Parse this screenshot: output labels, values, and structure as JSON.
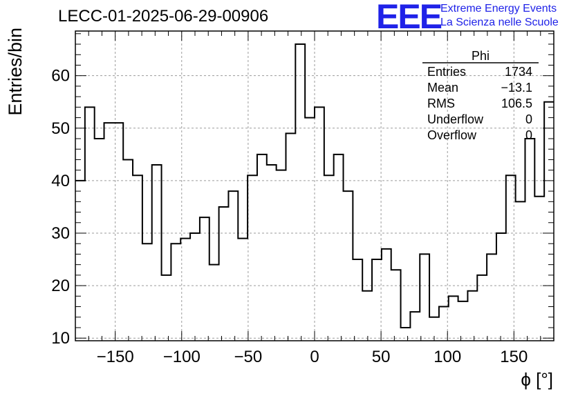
{
  "header": {
    "run_title": "LECC-01-2025-06-29-00906",
    "logo_letters": "EEE",
    "logo_line1": "Extreme Energy Events",
    "logo_line2": "La Scienza nelle Scuole"
  },
  "colors": {
    "logo": "#1f22e8",
    "line": "#000000",
    "grid": "#9a9a9a"
  },
  "chart_data": {
    "type": "histogram",
    "title": "",
    "xlabel": "ϕ [°]",
    "ylabel": "Entries/bin",
    "xlim": [
      -180,
      180
    ],
    "ylim": [
      9.5,
      68.5
    ],
    "grid": true,
    "bin_width": 7.2,
    "bin_low_edges": [
      -180.0,
      -172.8,
      -165.6,
      -158.4,
      -151.2,
      -144.0,
      -136.8,
      -129.6,
      -122.4,
      -115.2,
      -108.0,
      -100.8,
      -93.6,
      -86.4,
      -79.2,
      -72.0,
      -64.8,
      -57.6,
      -50.4,
      -43.2,
      -36.0,
      -28.8,
      -21.6,
      -14.4,
      -7.2,
      0.0,
      7.2,
      14.4,
      21.6,
      28.8,
      36.0,
      43.2,
      50.4,
      57.6,
      64.8,
      72.0,
      79.2,
      86.4,
      93.6,
      100.8,
      108.0,
      115.2,
      122.4,
      129.6,
      136.8,
      144.0,
      151.2,
      158.4,
      165.6,
      172.8
    ],
    "values": [
      40,
      54,
      48,
      51,
      51,
      44,
      41,
      28,
      43,
      22,
      28,
      29,
      30,
      33,
      24,
      35,
      38,
      29,
      41,
      45,
      43,
      42,
      49,
      66,
      52,
      54,
      41,
      45,
      38,
      25,
      19,
      25,
      27,
      23,
      12,
      15,
      26,
      14,
      16,
      18,
      17,
      19,
      22,
      26,
      30,
      41,
      36,
      48,
      37,
      55
    ],
    "x_ticks": [
      -150,
      -100,
      -50,
      0,
      50,
      100,
      150
    ],
    "x_tick_labels": [
      "−150",
      "−100",
      "−50",
      "0",
      "50",
      "100",
      "150"
    ],
    "y_ticks": [
      10,
      20,
      30,
      40,
      50,
      60
    ],
    "y_tick_labels": [
      "10",
      "20",
      "30",
      "40",
      "50",
      "60"
    ],
    "stats": {
      "title": "Phi",
      "rows": [
        {
          "label": "Entries",
          "value": "1734"
        },
        {
          "label": "Mean",
          "value": "−13.1"
        },
        {
          "label": "RMS",
          "value": "106.5"
        },
        {
          "label": "Underflow",
          "value": "0"
        },
        {
          "label": "Overflow",
          "value": "0"
        }
      ]
    }
  }
}
